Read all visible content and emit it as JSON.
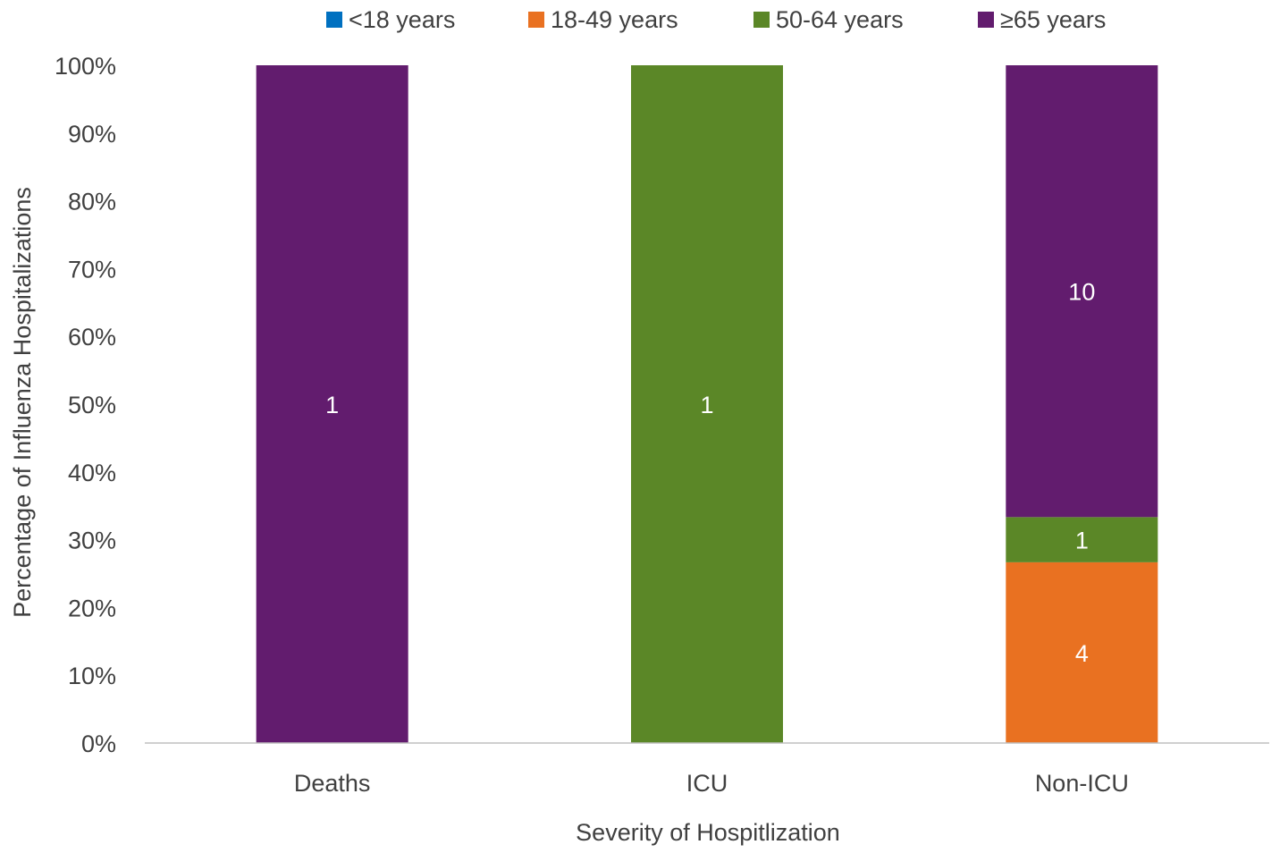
{
  "chart_data": {
    "type": "bar",
    "stacked": true,
    "normalized": true,
    "categories": [
      "Deaths",
      "ICU",
      "Non-ICU"
    ],
    "series": [
      {
        "name": "<18 years",
        "color": "#0070C0",
        "values": [
          0,
          0,
          0
        ]
      },
      {
        "name": "18-49 years",
        "color": "#E97121",
        "values": [
          0,
          0,
          4
        ]
      },
      {
        "name": "50-64 years",
        "color": "#5B8727",
        "values": [
          0,
          1,
          1
        ]
      },
      {
        "name": "≥65 years",
        "color": "#621C6E",
        "values": [
          1,
          0,
          10
        ]
      }
    ],
    "xlabel": "Severity of Hospitlization",
    "ylabel": "Percentage of Influenza Hospitalizations",
    "ylim": [
      0,
      100
    ],
    "yticks": [
      "0%",
      "10%",
      "20%",
      "30%",
      "40%",
      "50%",
      "60%",
      "70%",
      "80%",
      "90%",
      "100%"
    ],
    "legend_position": "top",
    "grid": false,
    "data_label_color": "#FFFFFF",
    "text_color": "#404040",
    "axis_color": "#BFBFBF"
  }
}
